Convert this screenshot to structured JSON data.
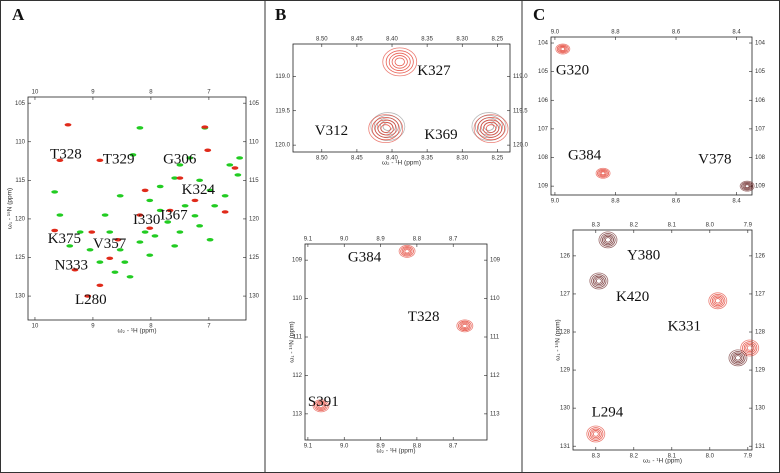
{
  "chart_data": [
    {
      "type": "scatter",
      "panel": "A",
      "x_label": "ω₂ - ¹H (ppm)",
      "y_label": "ω₁ - ¹⁵N (ppm)",
      "xlim": [
        10.12,
        6.36
      ],
      "ylim": [
        133.1,
        104.2
      ],
      "xticks": [
        10,
        9,
        8,
        7
      ],
      "yticks": [
        105,
        110,
        115,
        120,
        125,
        130
      ],
      "series": [
        {
          "color": "#22cc22",
          "x": [
            8.31,
            7.5,
            7.59,
            7.33,
            7.16,
            6.98,
            8.02,
            7.84,
            7.71,
            8.1,
            8.19,
            7.93,
            8.53,
            8.45,
            8.88,
            8.62,
            8.36,
            9.05,
            9.22,
            9.4,
            7.41,
            7.24,
            6.9,
            6.72,
            6.64,
            6.5,
            6.47,
            9.66,
            9.57,
            8.71,
            8.02,
            7.59,
            7.16,
            6.98,
            8.79,
            7.84,
            8.53,
            7.5,
            8.19,
            7.07
          ],
          "values": [
            111.7,
            113.0,
            114.7,
            112.1,
            115.0,
            116.3,
            117.6,
            118.9,
            120.4,
            121.7,
            123.0,
            122.2,
            124.0,
            125.6,
            125.6,
            126.9,
            127.5,
            124.0,
            121.7,
            123.5,
            118.3,
            119.6,
            118.3,
            117.0,
            113.0,
            114.3,
            112.1,
            116.5,
            119.5,
            121.7,
            124.7,
            123.5,
            120.9,
            122.7,
            119.5,
            115.8,
            117.0,
            121.7,
            108.2,
            108.2
          ]
        },
        {
          "color": "#e02a1a",
          "x": [
            9.43,
            7.07,
            8.88,
            9.57,
            7.02,
            7.5,
            8.02,
            8.71,
            9.31,
            9.09,
            8.19,
            7.67,
            8.88,
            8.57,
            7.24,
            6.72,
            9.66,
            9.02,
            6.55,
            8.1
          ],
          "values": [
            107.8,
            108.1,
            112.4,
            112.4,
            111.1,
            114.7,
            121.2,
            125.1,
            126.6,
            130.0,
            119.5,
            118.9,
            128.6,
            122.7,
            117.6,
            119.1,
            121.5,
            121.7,
            113.4,
            116.3
          ]
        }
      ],
      "annotations": [
        {
          "text": "T328",
          "x": 9.74,
          "y": 111.7
        },
        {
          "text": "T329",
          "x": 8.83,
          "y": 112.4
        },
        {
          "text": "G306",
          "x": 7.79,
          "y": 112.4
        },
        {
          "text": "K324",
          "x": 7.47,
          "y": 116.3
        },
        {
          "text": "I330",
          "x": 8.31,
          "y": 120.2
        },
        {
          "text": "I367",
          "x": 7.84,
          "y": 119.6
        },
        {
          "text": "K375",
          "x": 9.78,
          "y": 122.7
        },
        {
          "text": "V357",
          "x": 9.0,
          "y": 123.3
        },
        {
          "text": "N333",
          "x": 9.66,
          "y": 126.1
        },
        {
          "text": "L280",
          "x": 9.31,
          "y": 130.6
        }
      ]
    },
    {
      "type": "scatter",
      "panel": "B",
      "x_label": "ω₂ - ¹H (ppm)",
      "xlim": [
        8.541,
        8.232
      ],
      "ylim": [
        120.1,
        118.53
      ],
      "xticks": [
        {
          "value": 8.5,
          "label": "8.50"
        },
        8.45,
        {
          "value": 8.4,
          "label": "8.40"
        },
        8.35,
        {
          "value": 8.3,
          "label": "8.30"
        },
        8.25
      ],
      "yticks": [
        {
          "value": 119,
          "label": "119.0"
        },
        119.5,
        {
          "value": 120,
          "label": "120.0"
        }
      ],
      "series": [
        {
          "color": "#8a8a8a",
          "x": [
            8.406,
            8.262
          ],
          "values": [
            119.73,
            119.73
          ]
        },
        {
          "color": "#e02a1a",
          "x": [
            8.389,
            8.409,
            8.259
          ],
          "values": [
            118.79,
            119.76,
            119.76
          ]
        }
      ],
      "annotations": [
        {
          "text": "K327",
          "x": 8.364,
          "y": 118.93
        },
        {
          "text": "V312",
          "x": 8.51,
          "y": 119.8
        },
        {
          "text": "K369",
          "x": 8.354,
          "y": 119.86
        }
      ]
    },
    {
      "type": "scatter",
      "x_label": "ω₂ - ¹H (ppm)",
      "y_label": "ω₁ - ¹⁵N (ppm)",
      "xlim": [
        9.108,
        8.607
      ],
      "ylim": [
        113.68,
        108.58
      ],
      "xticks": [
        9.1,
        {
          "value": 9,
          "label": "9.0"
        },
        8.9,
        8.8,
        8.7
      ],
      "yticks": [
        109,
        110,
        111,
        112,
        113
      ],
      "series": [
        {
          "color": "#e02a1a",
          "x": [
            8.827,
            8.668,
            9.064
          ],
          "values": [
            108.77,
            110.71,
            112.79
          ]
        }
      ],
      "annotations": [
        {
          "text": "G384",
          "x": 8.99,
          "y": 108.95
        },
        {
          "text": "T328",
          "x": 8.825,
          "y": 110.5
        },
        {
          "text": "S391",
          "x": 9.1,
          "y": 112.7
        }
      ]
    },
    {
      "type": "scatter",
      "panel": "C",
      "xlim": [
        9.013,
        8.349
      ],
      "ylim": [
        109.31,
        103.79
      ],
      "xticks": [
        {
          "value": 9,
          "label": "9.0"
        },
        8.8,
        8.6,
        8.4
      ],
      "yticks": [
        104,
        105,
        106,
        107,
        108,
        109
      ],
      "series": [
        {
          "color": "#e02a1a",
          "x": [
            8.974,
            8.841
          ],
          "values": [
            104.21,
            108.55
          ]
        },
        {
          "color": "#5a0c0c",
          "x": [
            8.365
          ],
          "values": [
            109.0
          ]
        }
      ],
      "annotations": [
        {
          "text": "G320",
          "x": 8.997,
          "y": 104.98
        },
        {
          "text": "G384",
          "x": 8.957,
          "y": 107.95
        },
        {
          "text": "V378",
          "x": 8.527,
          "y": 108.09
        }
      ]
    },
    {
      "type": "scatter",
      "x_label": "ω₂ - ¹H (ppm)",
      "y_label": "ω₁ - ¹⁵N (ppm)",
      "xlim": [
        8.36,
        7.889
      ],
      "ylim": [
        131.1,
        125.32
      ],
      "xticks": [
        8.3,
        8.2,
        8.1,
        {
          "value": 8,
          "label": "8.0"
        },
        7.9
      ],
      "yticks": [
        126,
        127,
        128,
        129,
        130,
        131
      ],
      "series": [
        {
          "color": "#e02a1a",
          "x": [
            7.979,
            8.3,
            7.895
          ],
          "values": [
            127.18,
            130.68,
            128.42
          ]
        },
        {
          "color": "#5a0c0c",
          "x": [
            8.268,
            8.292,
            7.926
          ],
          "values": [
            125.58,
            126.66,
            128.68
          ]
        }
      ],
      "annotations": [
        {
          "text": "Y380",
          "x": 8.218,
          "y": 126.0
        },
        {
          "text": "K420",
          "x": 8.247,
          "y": 127.1
        },
        {
          "text": "K331",
          "x": 8.111,
          "y": 127.87
        },
        {
          "text": "L294",
          "x": 8.311,
          "y": 130.13
        }
      ]
    }
  ]
}
